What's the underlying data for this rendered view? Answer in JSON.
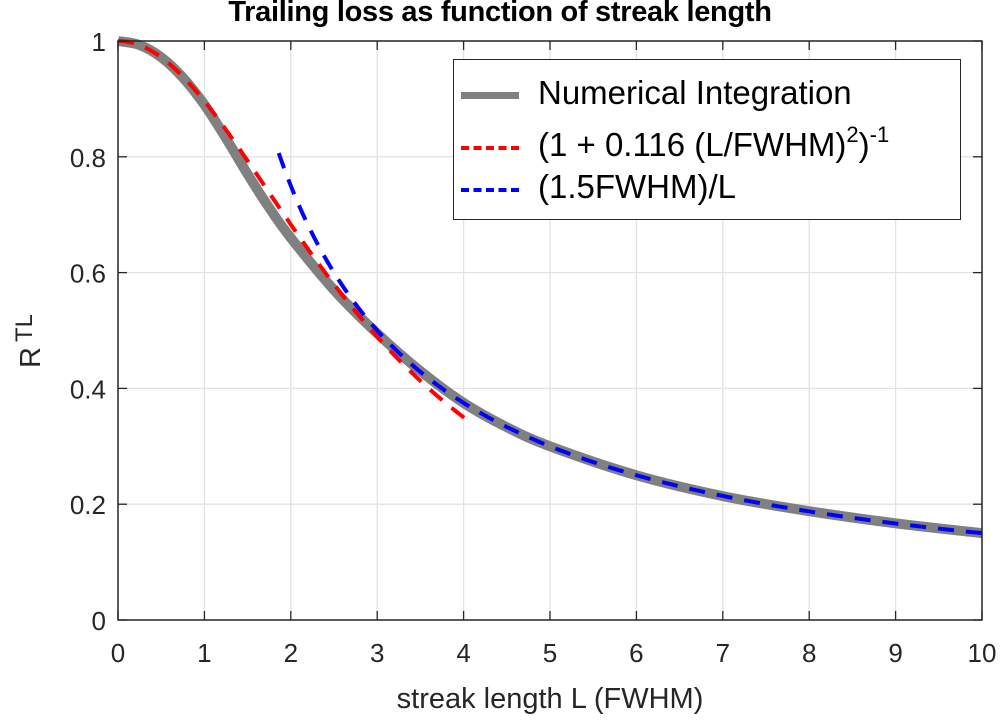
{
  "chart_data": {
    "type": "line",
    "title": "Trailing loss as function of streak length",
    "xlabel": "streak length L (FWHM)",
    "ylabel": "R",
    "ylabel_subscript": "TL",
    "xlim": [
      0,
      10
    ],
    "ylim": [
      0,
      1
    ],
    "xticks": [
      "0",
      "1",
      "2",
      "3",
      "4",
      "5",
      "6",
      "7",
      "8",
      "9",
      "10"
    ],
    "yticks": [
      "0",
      "0.2",
      "0.4",
      "0.6",
      "0.8",
      "1"
    ],
    "grid": true,
    "legend_position": "upper right",
    "series": [
      {
        "name": "Numerical Integration",
        "color": "#808080",
        "style": "solid",
        "x": [
          0,
          0.25,
          0.5,
          0.75,
          1,
          1.25,
          1.5,
          1.75,
          2,
          2.5,
          3,
          3.5,
          4,
          4.5,
          5,
          6,
          7,
          8,
          9,
          10
        ],
        "y": [
          1,
          0.993,
          0.972,
          0.937,
          0.89,
          0.832,
          0.77,
          0.712,
          0.66,
          0.57,
          0.495,
          0.43,
          0.375,
          0.333,
          0.3,
          0.25,
          0.214,
          0.188,
          0.167,
          0.15
        ]
      },
      {
        "name": "(1 + 0.116 (L/FWHM)^2)^-1",
        "color": "#ff0000",
        "style": "dashed",
        "formula": "1/(1+0.116*L^2)",
        "x_range": [
          0,
          4.05
        ]
      },
      {
        "name": "(1.5FWHM)/L",
        "color": "#0000ff",
        "style": "dashed",
        "formula": "1.5/L",
        "x_range": [
          1.86,
          10
        ]
      }
    ]
  },
  "legend": {
    "items": [
      {
        "label": "Numerical Integration"
      },
      {
        "label_main": "(1 + 0.116 (L/FWHM)",
        "sup1": "2",
        "close": ")",
        "sup2": "-1"
      },
      {
        "label": "(1.5FWHM)/L"
      }
    ]
  }
}
